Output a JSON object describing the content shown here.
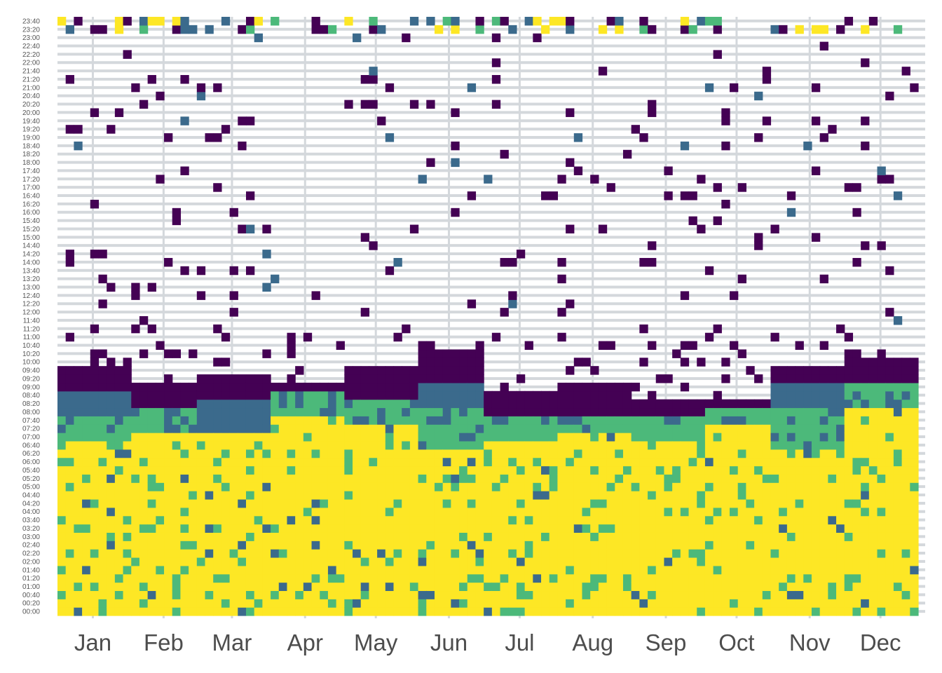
{
  "chart_data": {
    "type": "heatmap",
    "title": "",
    "xlabel": "",
    "ylabel": "",
    "x_tick_labels": [
      "Jan",
      "Feb",
      "Mar",
      "Apr",
      "May",
      "Jun",
      "Jul",
      "Aug",
      "Sep",
      "Oct",
      "Nov",
      "Dec"
    ],
    "x_tick_days": [
      15,
      45,
      74,
      105,
      135,
      166,
      196,
      227,
      258,
      288,
      319,
      349
    ],
    "x_range_days": [
      0,
      365
    ],
    "y_tick_labels": [
      "00:00",
      "00:20",
      "00:40",
      "01:00",
      "01:20",
      "01:40",
      "02:00",
      "02:20",
      "02:40",
      "03:00",
      "03:20",
      "03:40",
      "04:00",
      "04:20",
      "04:40",
      "05:00",
      "05:20",
      "05:40",
      "06:00",
      "06:20",
      "06:40",
      "07:00",
      "07:20",
      "07:40",
      "08:00",
      "08:20",
      "08:40",
      "09:00",
      "09:20",
      "09:40",
      "10:00",
      "10:20",
      "10:40",
      "11:00",
      "11:20",
      "11:40",
      "12:00",
      "12:20",
      "12:40",
      "13:00",
      "13:20",
      "13:40",
      "14:00",
      "14:20",
      "14:40",
      "15:00",
      "15:20",
      "15:40",
      "16:00",
      "16:20",
      "16:40",
      "17:00",
      "17:20",
      "17:40",
      "18:00",
      "18:20",
      "18:40",
      "19:00",
      "19:20",
      "19:40",
      "20:00",
      "20:20",
      "20:40",
      "21:00",
      "21:20",
      "21:40",
      "22:00",
      "22:20",
      "22:40",
      "23:00",
      "23:20",
      "23:40"
    ],
    "levels": [
      "#440154",
      "#3b6a8c",
      "#4cb97a",
      "#fde725"
    ],
    "grid": true,
    "legend": "none",
    "weeks": [
      {
        "label": "Jan",
        "levels_by_slot": {
          "0-20": 3,
          "21-23": 2,
          "24-26": 1,
          "27-29": 0
        }
      },
      {
        "label": "Feb",
        "levels_by_slot": {
          "0-21": 3,
          "22-24": 2,
          "25-27": 0
        }
      },
      {
        "label": "Mar",
        "levels_by_slot": {
          "0-21": 3,
          "22-25": 1,
          "26-28": 0
        }
      },
      {
        "label": "Apr",
        "levels_by_slot": {
          "0-23": 3,
          "24-26": 2,
          "27": 0
        }
      },
      {
        "label": "May",
        "levels_by_slot": {
          "0-22": 3,
          "23-25": 2,
          "26-29": 0
        }
      },
      {
        "label": "Jun",
        "levels_by_slot": {
          "0-19": 3,
          "20-24": 2,
          "25-27": 1,
          "28-31": 0
        }
      },
      {
        "label": "Jul",
        "levels_by_slot": {
          "0-20": 3,
          "21-23": 2,
          "24-26": 0
        }
      },
      {
        "label": "Aug",
        "levels_by_slot": {
          "0-21": 3,
          "22-23": 2,
          "24-27": 0
        }
      },
      {
        "label": "Sep",
        "levels_by_slot": {
          "0-20": 3,
          "21-23": 2,
          "24-25": 0
        }
      },
      {
        "label": "Oct",
        "levels_by_slot": {
          "0-22": 3,
          "23-24": 2,
          "25": 0
        }
      },
      {
        "label": "Nov",
        "levels_by_slot": {
          "0-19": 3,
          "20-24": 2,
          "25-27": 1,
          "28-29": 0
        }
      },
      {
        "label": "Dec",
        "levels_by_slot": {
          "0-24": 3,
          "25-27": 2,
          "28-30": 0
        }
      }
    ]
  }
}
